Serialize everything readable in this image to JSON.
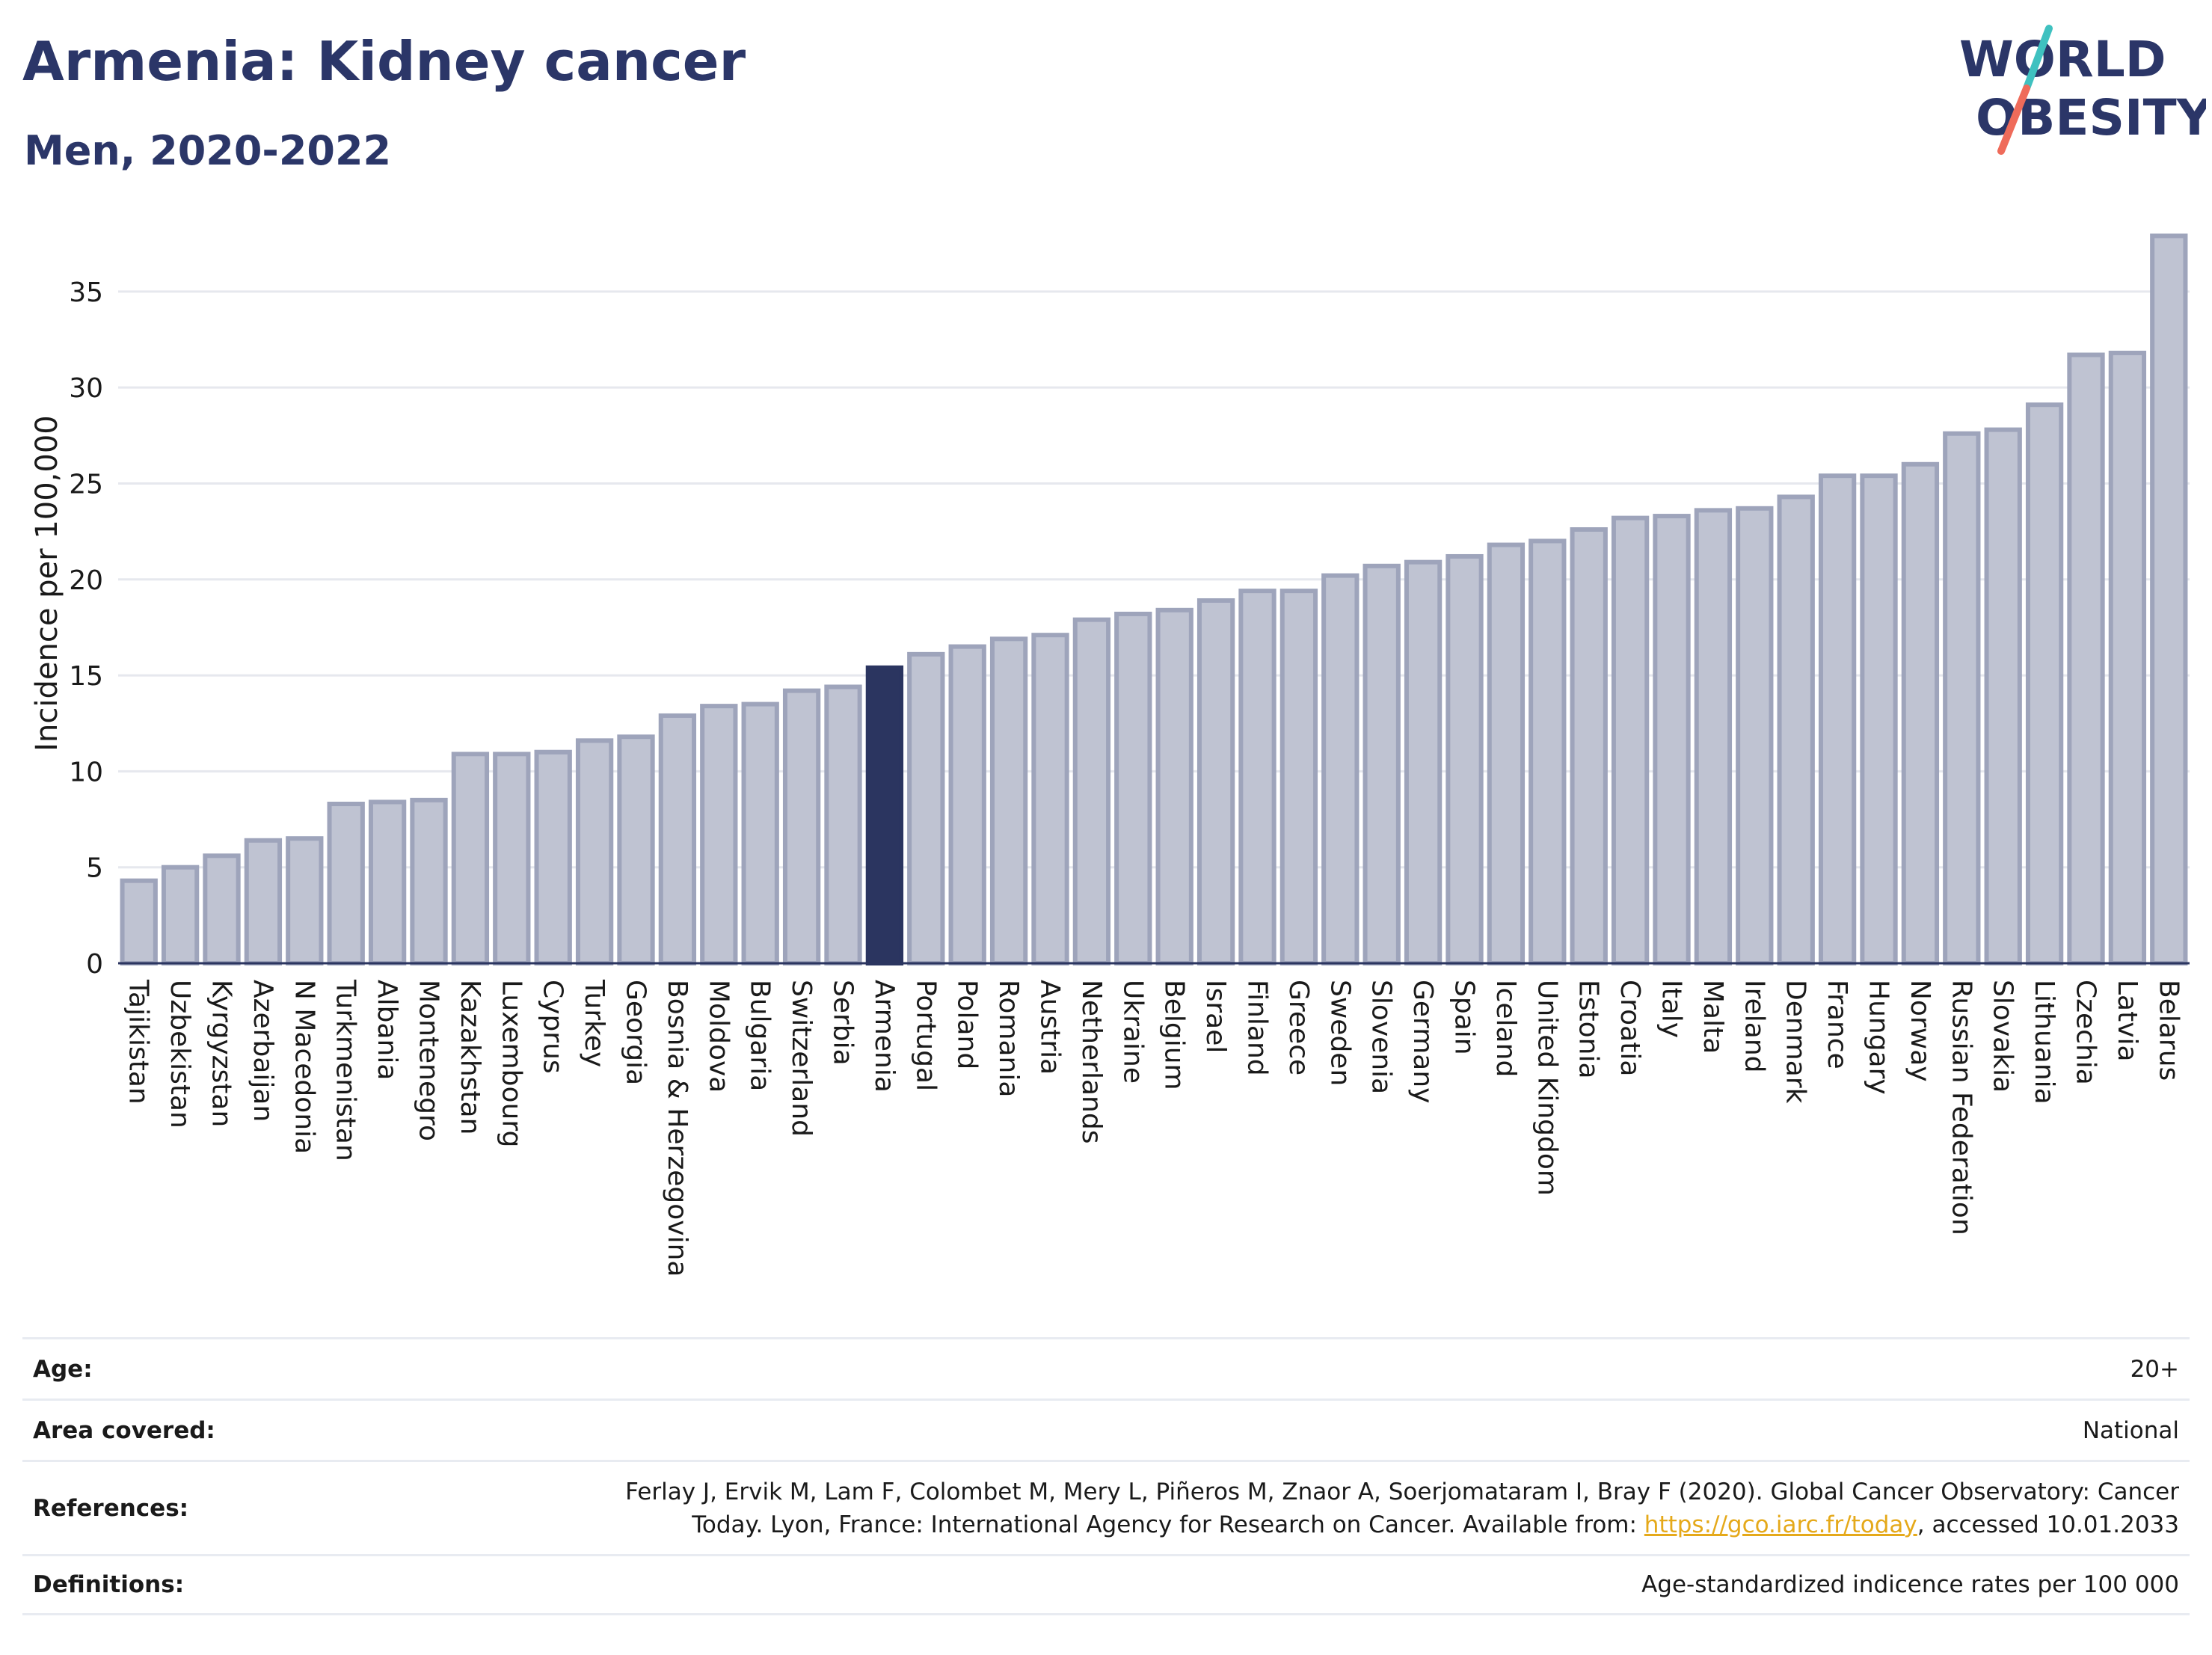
{
  "header": {
    "title": "Armenia: Kidney cancer",
    "subtitle": "Men, 2020-2022"
  },
  "logo": {
    "line1": "WORLD",
    "line2": "OBESITY",
    "slash_colors": [
      "#3fc1c0",
      "#ef6b5a"
    ],
    "text_color": "#2b3668"
  },
  "colors": {
    "bar": "#bfc3d2",
    "bar_stroke": "#9ea4bb",
    "highlight": "#2b3560",
    "grid": "#e6e8ee",
    "axis_text": "#1a1a1a"
  },
  "chart_data": {
    "type": "bar",
    "ylabel": "Incidence per 100,000",
    "xlabel": "",
    "ylim": [
      0,
      38.5
    ],
    "yticks": [
      0,
      5,
      10,
      15,
      20,
      25,
      30,
      35
    ],
    "grid": true,
    "highlight": "Armenia",
    "categories": [
      "Tajikistan",
      "Uzbekistan",
      "Kyrgyzstan",
      "Azerbaijan",
      "N Macedonia",
      "Turkmenistan",
      "Albania",
      "Montenegro",
      "Kazakhstan",
      "Luxembourg",
      "Cyprus",
      "Turkey",
      "Georgia",
      "Bosnia & Herzegovina",
      "Moldova",
      "Bulgaria",
      "Switzerland",
      "Serbia",
      "Armenia",
      "Portugal",
      "Poland",
      "Romania",
      "Austria",
      "Netherlands",
      "Ukraine",
      "Belgium",
      "Israel",
      "Finland",
      "Greece",
      "Sweden",
      "Slovenia",
      "Germany",
      "Spain",
      "Iceland",
      "United Kingdom",
      "Estonia",
      "Croatia",
      "Italy",
      "Malta",
      "Ireland",
      "Denmark",
      "France",
      "Hungary",
      "Norway",
      "Russian Federation",
      "Slovakia",
      "Lithuania",
      "Czechia",
      "Latvia",
      "Belarus"
    ],
    "values": [
      4.3,
      5.0,
      5.6,
      6.4,
      6.5,
      8.3,
      8.4,
      8.5,
      10.9,
      10.9,
      11.0,
      11.6,
      11.8,
      12.9,
      13.4,
      13.5,
      14.2,
      14.4,
      15.4,
      16.1,
      16.5,
      16.9,
      17.1,
      17.9,
      18.2,
      18.4,
      18.9,
      19.4,
      19.4,
      20.2,
      20.7,
      20.9,
      21.2,
      21.8,
      22.0,
      22.6,
      23.2,
      23.3,
      23.6,
      23.7,
      24.3,
      25.4,
      25.4,
      26.0,
      27.6,
      27.8,
      29.1,
      31.7,
      31.8,
      37.9
    ]
  },
  "meta": {
    "age_label": "Age:",
    "age_value": "20+",
    "area_label": "Area covered:",
    "area_value": "National",
    "references_label": "References:",
    "references_line1": "Ferlay J, Ervik M, Lam F, Colombet M, Mery L, Piñeros M, Znaor A, Soerjomataram I, Bray F (2020). Global Cancer Observatory: Cancer",
    "references_line2_prefix": "Today. Lyon, France: International Agency for Research on Cancer. Available from: ",
    "references_link": "https://gco.iarc.fr/today",
    "references_line2_suffix": ", accessed 10.01.2033",
    "definitions_label": "Definitions:",
    "definitions_value": "Age-standardized indicence rates per 100 000"
  }
}
